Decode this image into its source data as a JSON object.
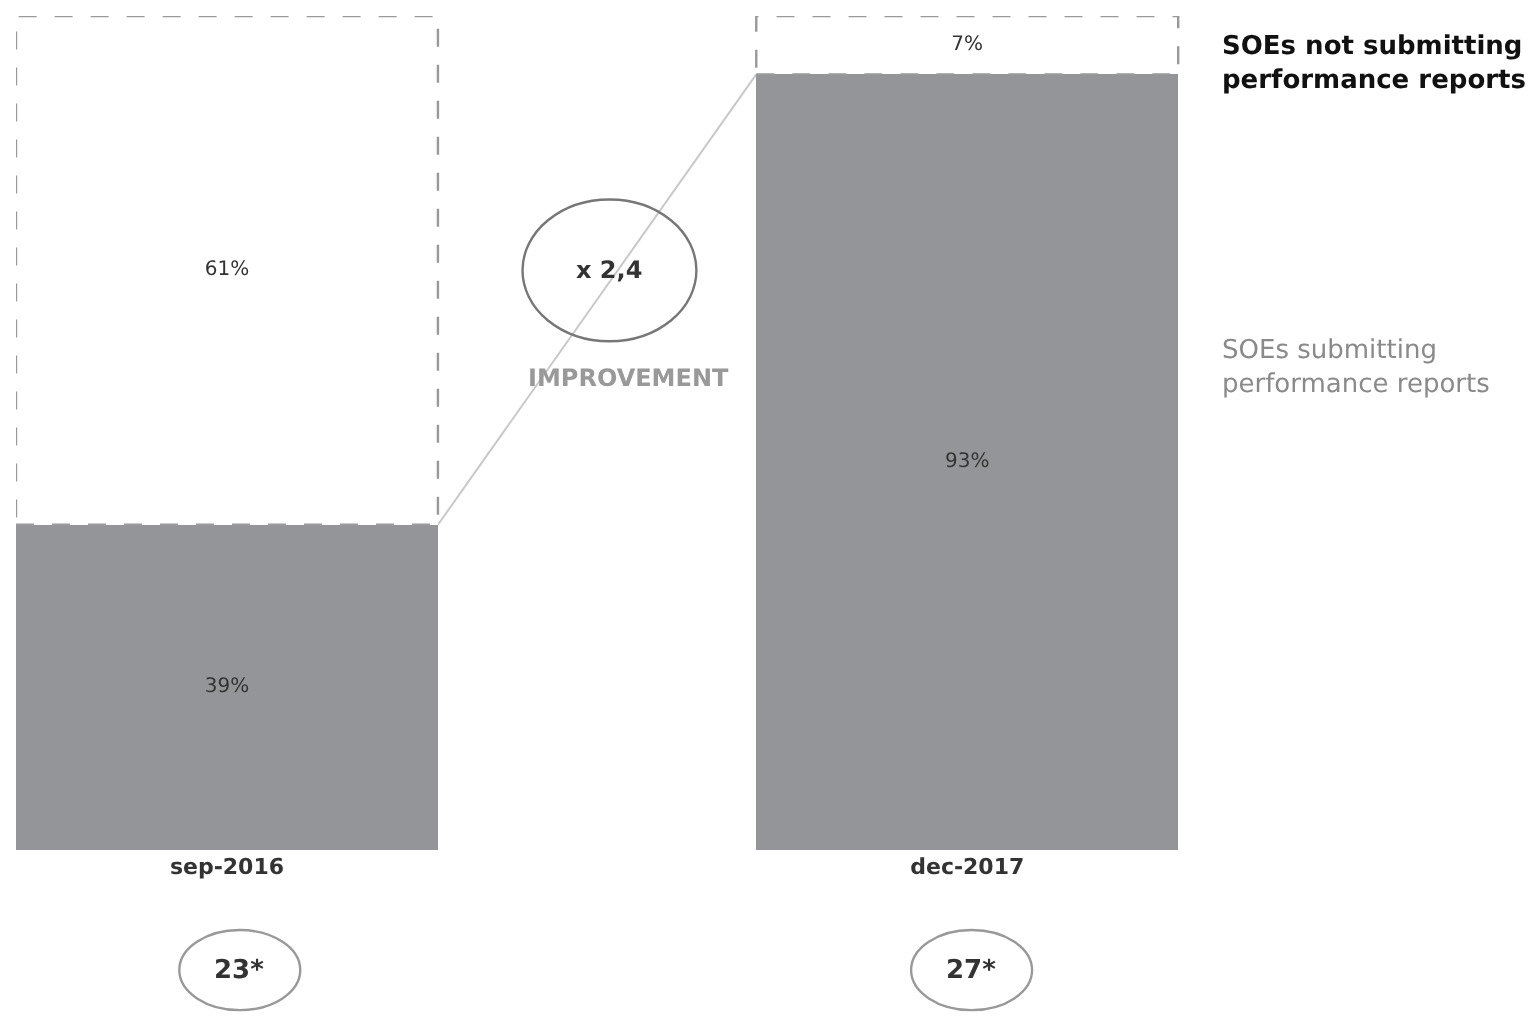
{
  "chart_data": {
    "type": "bar",
    "stacked": true,
    "legend": false,
    "categories": [
      "sep-2016",
      "dec-2017"
    ],
    "series": [
      {
        "name": "SOEs submitting performance reports",
        "color": "#939598",
        "values": [
          39,
          93
        ],
        "value_labels": [
          "39%",
          "93%"
        ]
      },
      {
        "name": "SOEs not submitting performance reports",
        "color": "#ffffff",
        "values": [
          61,
          7
        ],
        "value_labels": [
          "61%",
          "7%"
        ],
        "line_style": "dashed"
      }
    ],
    "ylim": [
      0,
      100
    ],
    "tick_labels": "x",
    "annotations": [
      "x 2,4",
      "IMPROVEMENT",
      "23*",
      "27*"
    ]
  }
}
